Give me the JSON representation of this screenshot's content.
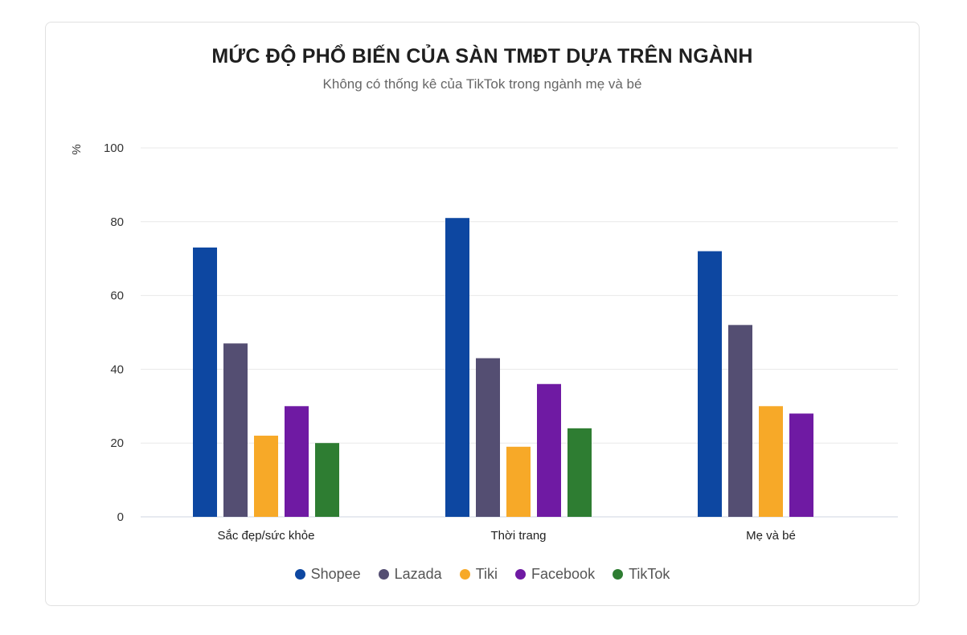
{
  "chart_data": {
    "type": "bar",
    "title": "MỨC ĐỘ PHỔ BIẾN CỦA SÀN TMĐT DỰA TRÊN NGÀNH",
    "subtitle": "Không có thống kê của TikTok trong ngành mẹ và bé",
    "ylabel": "%",
    "ylim": [
      0,
      100
    ],
    "yticks": [
      "0",
      "20",
      "40",
      "60",
      "80",
      "100"
    ],
    "grid": true,
    "legend_position": "bottom",
    "categories": [
      "Sắc đẹp/sức khỏe",
      "Thời trang",
      "Mẹ và bé"
    ],
    "series": [
      {
        "name": "Shopee",
        "color": "#0d47a1",
        "values": [
          73,
          81,
          72
        ]
      },
      {
        "name": "Lazada",
        "color": "#544e72",
        "values": [
          47,
          43,
          52
        ]
      },
      {
        "name": "Tiki",
        "color": "#f7a928",
        "values": [
          22,
          19,
          30
        ]
      },
      {
        "name": "Facebook",
        "color": "#6f1aa3",
        "values": [
          30,
          36,
          28
        ]
      },
      {
        "name": "TikTok",
        "color": "#2e7d32",
        "values": [
          20,
          24,
          null
        ]
      }
    ]
  }
}
